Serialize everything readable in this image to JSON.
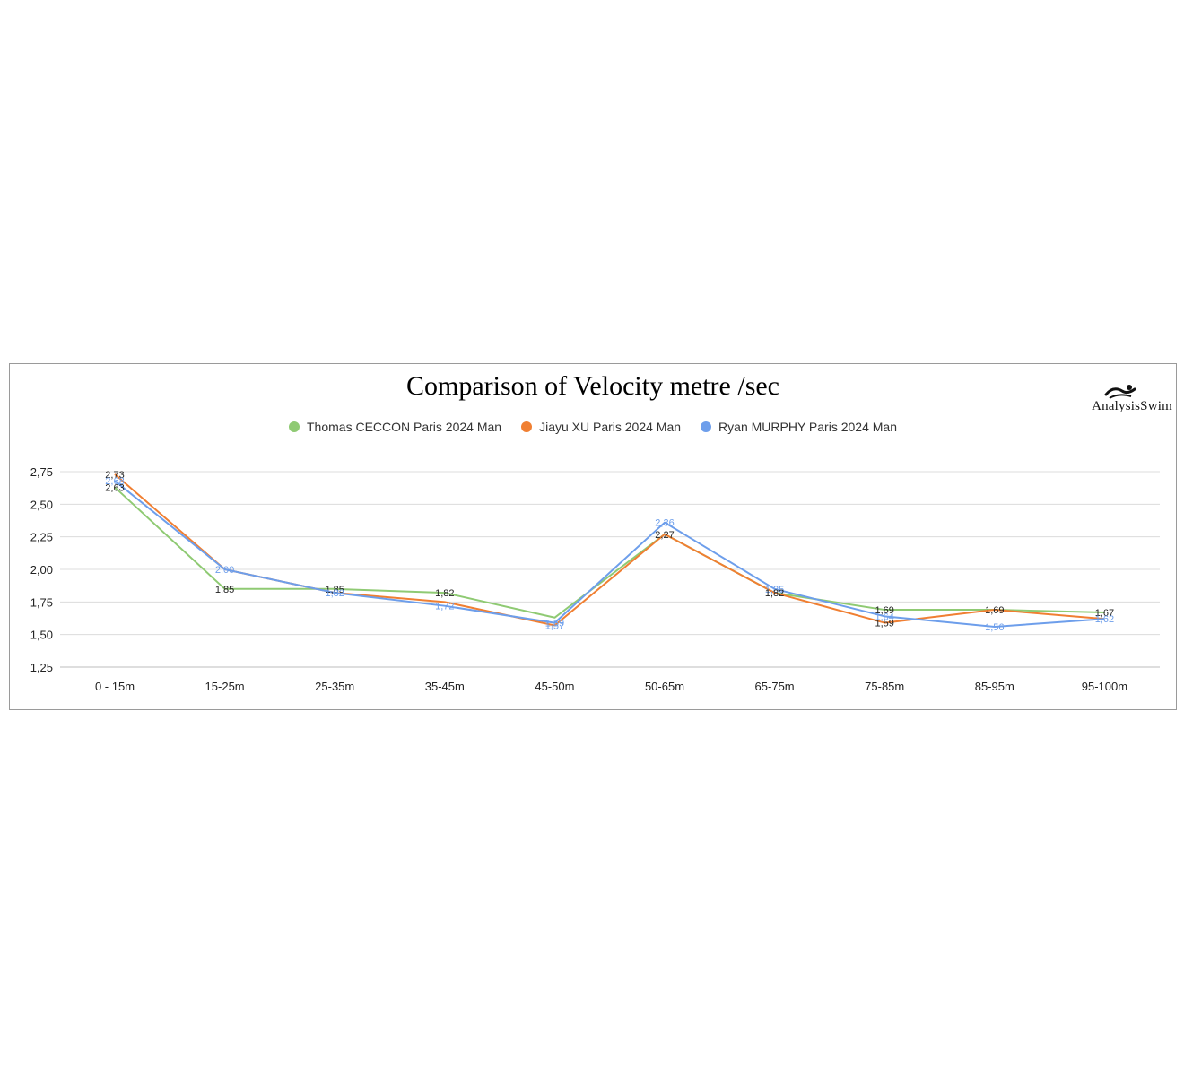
{
  "chart_data": {
    "type": "line",
    "title": "Comparison of Velocity metre /sec",
    "categories": [
      "0 - 15m",
      "15-25m",
      "25-35m",
      "35-45m",
      "45-50m",
      "50-65m",
      "65-75m",
      "75-85m",
      "85-95m",
      "95-100m"
    ],
    "ylim": [
      1.25,
      2.75
    ],
    "yticks": [
      "1,25",
      "1,50",
      "1,75",
      "2,00",
      "2,25",
      "2,50",
      "2,75"
    ],
    "grid": true,
    "legend_position": "top",
    "series": [
      {
        "name": "Thomas CECCON Paris 2024 Man",
        "color": "#8fca73",
        "values": [
          2.63,
          1.85,
          1.85,
          1.82,
          1.63,
          2.27,
          1.82,
          1.69,
          1.69,
          1.67
        ]
      },
      {
        "name": "Jiayu XU Paris 2024 Man",
        "color": "#f07f32",
        "values": [
          2.73,
          2.0,
          1.82,
          1.75,
          1.57,
          2.27,
          1.82,
          1.59,
          1.69,
          1.62
        ]
      },
      {
        "name": "Ryan MURPHY Paris 2024 Man",
        "color": "#6d9eeb",
        "values": [
          2.68,
          2.0,
          1.82,
          1.72,
          1.59,
          2.36,
          1.85,
          1.64,
          1.56,
          1.62
        ]
      }
    ],
    "data_labels": [
      {
        "category": 0,
        "value": 2.73,
        "text": "2,73",
        "color": "#222222"
      },
      {
        "category": 0,
        "value": 2.68,
        "text": "2,68",
        "color": "#6d9eeb"
      },
      {
        "category": 0,
        "value": 2.63,
        "text": "2,63",
        "color": "#222222"
      },
      {
        "category": 1,
        "value": 2.0,
        "text": "2,00",
        "color": "#6d9eeb"
      },
      {
        "category": 1,
        "value": 1.85,
        "text": "1,85",
        "color": "#222222"
      },
      {
        "category": 2,
        "value": 1.85,
        "text": "1,85",
        "color": "#222222"
      },
      {
        "category": 2,
        "value": 1.82,
        "text": "1,82",
        "color": "#6d9eeb"
      },
      {
        "category": 3,
        "value": 1.82,
        "text": "1,82",
        "color": "#222222"
      },
      {
        "category": 3,
        "value": 1.72,
        "text": "1,72",
        "color": "#6d9eeb"
      },
      {
        "category": 4,
        "value": 1.59,
        "text": "1,59",
        "color": "#6d9eeb"
      },
      {
        "category": 4,
        "value": 1.57,
        "text": "1,57",
        "color": "#6d9eeb"
      },
      {
        "category": 5,
        "value": 2.36,
        "text": "2,36",
        "color": "#6d9eeb"
      },
      {
        "category": 5,
        "value": 2.27,
        "text": "2,27",
        "color": "#222222"
      },
      {
        "category": 6,
        "value": 1.85,
        "text": "1,85",
        "color": "#6d9eeb"
      },
      {
        "category": 6,
        "value": 1.82,
        "text": "1,82",
        "color": "#222222"
      },
      {
        "category": 7,
        "value": 1.69,
        "text": "1,69",
        "color": "#222222"
      },
      {
        "category": 7,
        "value": 1.64,
        "text": "1,64",
        "color": "#6d9eeb"
      },
      {
        "category": 7,
        "value": 1.59,
        "text": "1,59",
        "color": "#222222"
      },
      {
        "category": 8,
        "value": 1.69,
        "text": "1,69",
        "color": "#222222"
      },
      {
        "category": 8,
        "value": 1.56,
        "text": "1,56",
        "color": "#6d9eeb"
      },
      {
        "category": 9,
        "value": 1.67,
        "text": "1,67",
        "color": "#222222"
      },
      {
        "category": 9,
        "value": 1.62,
        "text": "1,62",
        "color": "#6d9eeb"
      }
    ]
  },
  "logo": {
    "text": "AnalysisSwim",
    "icon": "swimmer-icon"
  }
}
